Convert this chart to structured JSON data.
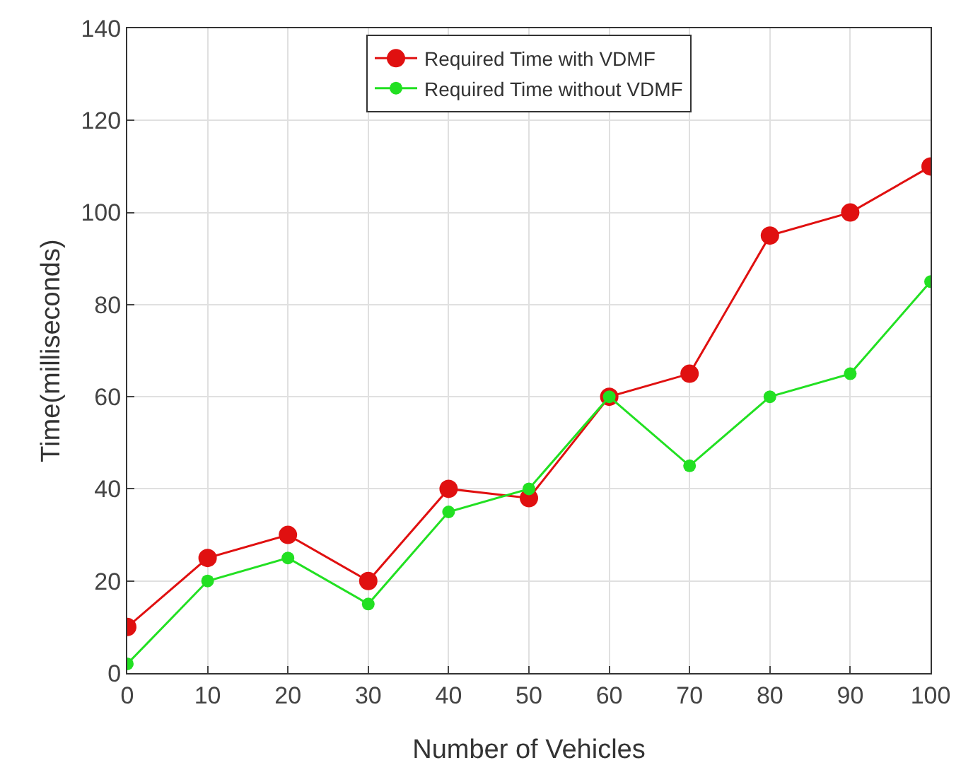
{
  "chart_data": {
    "type": "line",
    "xlabel": "Number of Vehicles",
    "ylabel": "Time(milliseconds)",
    "x": [
      0,
      10,
      20,
      30,
      40,
      50,
      60,
      70,
      80,
      90,
      100
    ],
    "series": [
      {
        "name": "Required Time with VDMF",
        "color": "#e01010",
        "values": [
          10,
          25,
          30,
          20,
          40,
          38,
          60,
          65,
          95,
          100,
          110
        ]
      },
      {
        "name": "Required Time without VDMF",
        "color": "#22e022",
        "values": [
          2,
          20,
          25,
          15,
          35,
          40,
          60,
          45,
          60,
          65,
          85
        ]
      }
    ],
    "xlim": [
      0,
      100
    ],
    "xticks": [
      0,
      10,
      20,
      30,
      40,
      50,
      60,
      70,
      80,
      90,
      100
    ],
    "ylim": [
      0,
      140
    ],
    "yticks": [
      0,
      20,
      40,
      60,
      80,
      100,
      120,
      140
    ],
    "grid": true,
    "legend": "top",
    "marker": "circle",
    "line_style": "solid"
  }
}
